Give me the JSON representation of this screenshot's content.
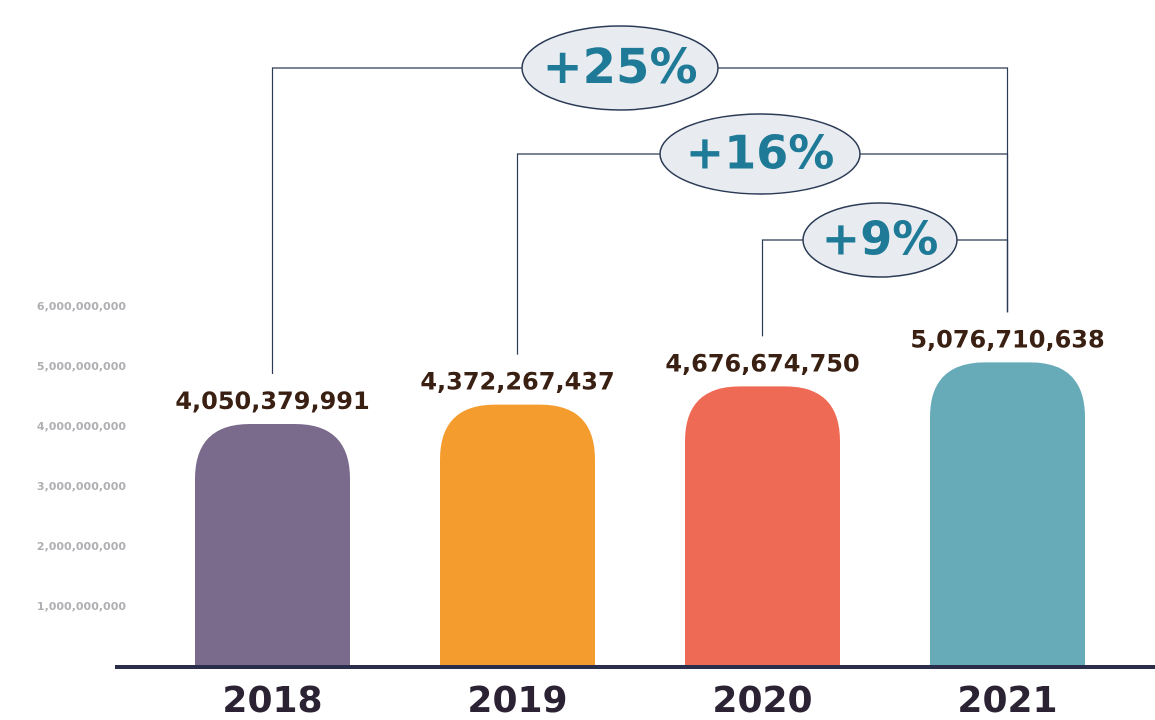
{
  "chart_data": {
    "type": "bar",
    "categories": [
      "2018",
      "2019",
      "2020",
      "2021"
    ],
    "values": [
      4050379991,
      4372267437,
      4676674750,
      5076710638
    ],
    "value_labels": [
      "4,050,379,991",
      "4,372,267,437",
      "4,676,674,750",
      "5,076,710,638"
    ],
    "colors": [
      "#7a6a8c",
      "#f59c2f",
      "#ef6a55",
      "#67abb8"
    ],
    "ylim": [
      0,
      6000000000
    ],
    "yticks": [
      {
        "value": 1000000000,
        "label": "1,000,000,000"
      },
      {
        "value": 2000000000,
        "label": "2,000,000,000"
      },
      {
        "value": 3000000000,
        "label": "3,000,000,000"
      },
      {
        "value": 4000000000,
        "label": "4,000,000,000"
      },
      {
        "value": 5000000000,
        "label": "5,000,000,000"
      },
      {
        "value": 6000000000,
        "label": "6,000,000,000"
      }
    ],
    "annotations": [
      "+25%",
      "+16%",
      "+9%"
    ]
  }
}
